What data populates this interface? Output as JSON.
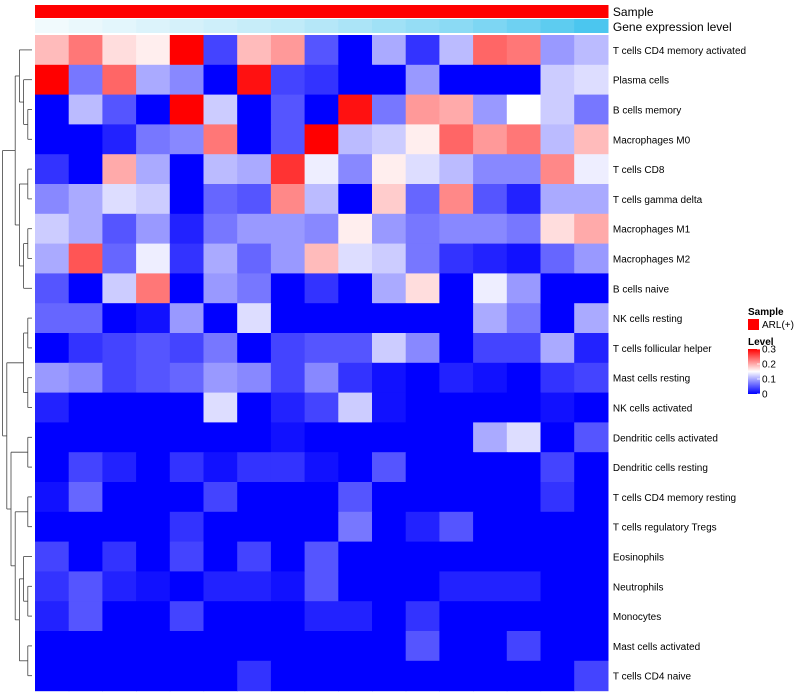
{
  "chart_data": {
    "type": "heatmap",
    "title": "",
    "annotations": [
      {
        "label": "Sample",
        "color": "#FF0000"
      },
      {
        "label": "Gene expression level",
        "gradient": [
          "#F5FBFD",
          "#44C4EE"
        ]
      }
    ],
    "legend": {
      "sample_title": "Sample",
      "sample_entry": "ARL(+)",
      "sample_color": "#FF0000",
      "level_title": "Level",
      "level_ticks": [
        0.3,
        0.2,
        0.1,
        0
      ],
      "level_tick_labels": [
        "0.3",
        "0.2",
        "0.1",
        "0"
      ],
      "level_colors": [
        "#FF0000",
        "#FFFFFF",
        "#0000FF"
      ],
      "level_range": [
        0,
        0.3
      ]
    },
    "rows": [
      "T cells CD4 memory activated",
      "Plasma cells",
      "B cells memory",
      "Macrophages M0",
      "T cells CD8",
      "T cells gamma delta",
      "Macrophages M1",
      "Macrophages M2",
      "B cells naive",
      "NK cells resting",
      "T cells follicular helper",
      "Mast cells resting",
      "NK cells activated",
      "Dendritic cells activated",
      "Dendritic cells resting",
      "T cells CD4 memory resting",
      "T cells regulatory  Tregs",
      "Eosinophils",
      "Neutrophils",
      "Monocytes",
      "Mast cells activated",
      "T cells CD4 naive"
    ],
    "values": [
      [
        0.19,
        0.23,
        0.17,
        0.16,
        0.3,
        0.04,
        0.19,
        0.21,
        0.05,
        0.0,
        0.1,
        0.03,
        0.11,
        0.24,
        0.23,
        0.09,
        0.11
      ],
      [
        0.3,
        0.07,
        0.24,
        0.1,
        0.08,
        0.0,
        0.29,
        0.04,
        0.03,
        0.0,
        0.0,
        0.09,
        0.0,
        0.0,
        0.0,
        0.12,
        0.13
      ],
      [
        0.0,
        0.11,
        0.05,
        0.0,
        0.3,
        0.12,
        0.0,
        0.05,
        0.0,
        0.29,
        0.07,
        0.21,
        0.2,
        0.09,
        0.15,
        0.12,
        0.07
      ],
      [
        0.0,
        0.0,
        0.02,
        0.07,
        0.08,
        0.23,
        0.0,
        0.05,
        0.3,
        0.11,
        0.12,
        0.16,
        0.24,
        0.21,
        0.23,
        0.11,
        0.19
      ],
      [
        0.03,
        0.0,
        0.2,
        0.1,
        0.0,
        0.11,
        0.1,
        0.27,
        0.14,
        0.08,
        0.16,
        0.13,
        0.11,
        0.08,
        0.08,
        0.22,
        0.14
      ],
      [
        0.08,
        0.1,
        0.13,
        0.12,
        0.0,
        0.06,
        0.05,
        0.22,
        0.11,
        0.0,
        0.18,
        0.06,
        0.22,
        0.05,
        0.02,
        0.1,
        0.1
      ],
      [
        0.12,
        0.1,
        0.05,
        0.09,
        0.02,
        0.07,
        0.09,
        0.09,
        0.08,
        0.16,
        0.09,
        0.07,
        0.08,
        0.08,
        0.07,
        0.17,
        0.2
      ],
      [
        0.1,
        0.25,
        0.06,
        0.14,
        0.03,
        0.1,
        0.06,
        0.09,
        0.19,
        0.13,
        0.12,
        0.07,
        0.03,
        0.02,
        0.01,
        0.06,
        0.09
      ],
      [
        0.05,
        0.0,
        0.12,
        0.23,
        0.0,
        0.09,
        0.07,
        0.0,
        0.03,
        0.0,
        0.1,
        0.17,
        0.0,
        0.14,
        0.09,
        0.0,
        0.0
      ],
      [
        0.06,
        0.06,
        0.0,
        0.01,
        0.09,
        0.0,
        0.13,
        0.0,
        0.0,
        0.0,
        0.0,
        0.0,
        0.0,
        0.1,
        0.07,
        0.0,
        0.1
      ],
      [
        0.0,
        0.03,
        0.04,
        0.05,
        0.04,
        0.07,
        0.0,
        0.04,
        0.05,
        0.05,
        0.12,
        0.08,
        0.0,
        0.04,
        0.04,
        0.1,
        0.02
      ],
      [
        0.09,
        0.08,
        0.04,
        0.05,
        0.06,
        0.09,
        0.08,
        0.04,
        0.08,
        0.03,
        0.01,
        0.0,
        0.02,
        0.01,
        0.0,
        0.03,
        0.04
      ],
      [
        0.02,
        0.0,
        0.0,
        0.0,
        0.0,
        0.13,
        0.0,
        0.02,
        0.04,
        0.12,
        0.01,
        0.0,
        0.0,
        0.0,
        0.0,
        0.01,
        0.0
      ],
      [
        0.0,
        0.0,
        0.0,
        0.0,
        0.0,
        0.0,
        0.0,
        0.01,
        0.0,
        0.0,
        0.0,
        0.0,
        0.0,
        0.1,
        0.13,
        0.0,
        0.05
      ],
      [
        0.0,
        0.04,
        0.02,
        0.0,
        0.03,
        0.01,
        0.03,
        0.03,
        0.01,
        0.0,
        0.05,
        0.0,
        0.0,
        0.0,
        0.0,
        0.04,
        0.0
      ],
      [
        0.01,
        0.06,
        0.0,
        0.0,
        0.0,
        0.04,
        0.0,
        0.0,
        0.0,
        0.05,
        0.0,
        0.0,
        0.0,
        0.0,
        0.0,
        0.03,
        0.0
      ],
      [
        0.0,
        0.0,
        0.0,
        0.0,
        0.03,
        0.0,
        0.0,
        0.0,
        0.0,
        0.07,
        0.0,
        0.02,
        0.05,
        0.0,
        0.0,
        0.0,
        0.0
      ],
      [
        0.04,
        0.0,
        0.03,
        0.0,
        0.04,
        0.0,
        0.04,
        0.0,
        0.05,
        0.0,
        0.0,
        0.0,
        0.0,
        0.0,
        0.0,
        0.0,
        0.0
      ],
      [
        0.03,
        0.05,
        0.02,
        0.01,
        0.0,
        0.02,
        0.02,
        0.01,
        0.05,
        0.0,
        0.0,
        0.0,
        0.02,
        0.02,
        0.02,
        0.0,
        0.0
      ],
      [
        0.02,
        0.05,
        0.0,
        0.0,
        0.04,
        0.0,
        0.0,
        0.0,
        0.02,
        0.02,
        0.0,
        0.03,
        0.0,
        0.0,
        0.0,
        0.0,
        0.0
      ],
      [
        0.0,
        0.0,
        0.0,
        0.0,
        0.0,
        0.0,
        0.0,
        0.0,
        0.0,
        0.0,
        0.0,
        0.05,
        0.0,
        0.0,
        0.04,
        0.0,
        0.0
      ],
      [
        0.0,
        0.0,
        0.0,
        0.0,
        0.0,
        0.0,
        0.03,
        0.0,
        0.0,
        0.0,
        0.0,
        0.0,
        0.0,
        0.0,
        0.0,
        0.0,
        0.04
      ]
    ],
    "gene_expression_levels": [
      0.02,
      0.06,
      0.1,
      0.14,
      0.18,
      0.22,
      0.26,
      0.3,
      0.36,
      0.42,
      0.48,
      0.54,
      0.6,
      0.68,
      0.76,
      0.86,
      0.96
    ],
    "row_dendrogram": true,
    "column_dendrogram": false,
    "legend_position": "right"
  }
}
